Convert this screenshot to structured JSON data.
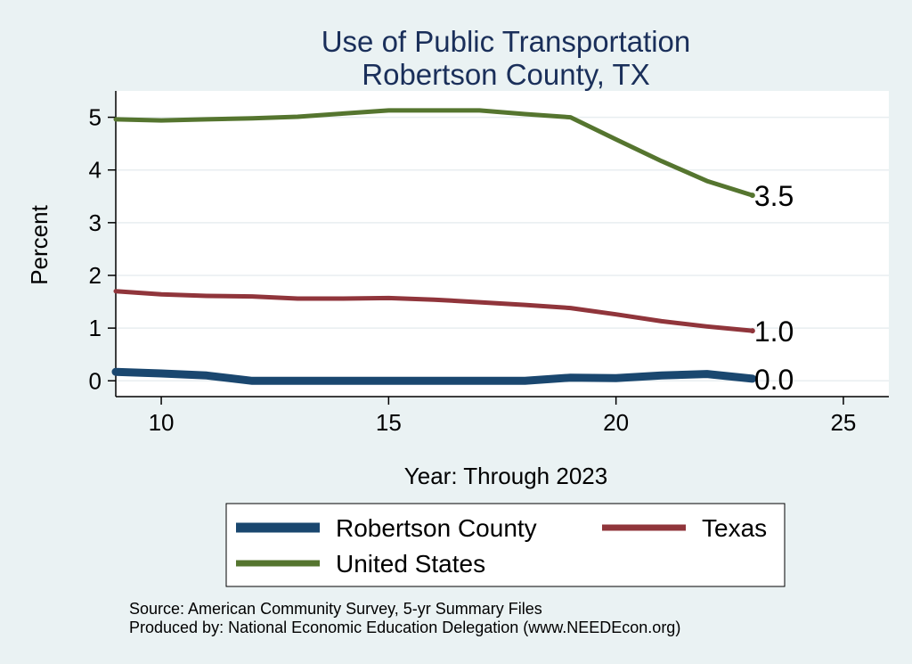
{
  "chart_data": {
    "type": "line",
    "title_lines": [
      "Use of Public Transportation",
      "Robertson County, TX"
    ],
    "xlabel": "Year: Through 2023",
    "ylabel": "Percent",
    "xlim": [
      9,
      26
    ],
    "ylim": [
      -0.3,
      5.5
    ],
    "x_ticks": [
      10,
      15,
      20,
      25
    ],
    "y_ticks": [
      0,
      1,
      2,
      3,
      4,
      5
    ],
    "grid": true,
    "legend_position": "bottom",
    "x": [
      9,
      10,
      11,
      12,
      13,
      14,
      15,
      16,
      17,
      18,
      19,
      20,
      21,
      22,
      23
    ],
    "series": [
      {
        "name": "Robertson County",
        "color": "#1a476f",
        "values": [
          0.17,
          0.14,
          0.1,
          0.0,
          0.0,
          0.0,
          0.0,
          0.0,
          0.0,
          0.0,
          0.06,
          0.05,
          0.1,
          0.13,
          0.04
        ],
        "end_label": "0.0"
      },
      {
        "name": "Texas",
        "color": "#90353b",
        "values": [
          1.7,
          1.64,
          1.61,
          1.6,
          1.56,
          1.56,
          1.57,
          1.54,
          1.49,
          1.44,
          1.38,
          1.26,
          1.13,
          1.03,
          0.95
        ],
        "end_label": "1.0"
      },
      {
        "name": "United States",
        "color": "#55752f",
        "values": [
          4.96,
          4.94,
          4.96,
          4.98,
          5.01,
          5.07,
          5.13,
          5.13,
          5.13,
          5.06,
          5.0,
          4.58,
          4.17,
          3.79,
          3.52
        ],
        "end_label": "3.5"
      }
    ]
  },
  "notes": {
    "source": "Source: American Community Survey, 5-yr Summary Files",
    "produced_by": "Produced by: National Economic Education Delegation (www.NEEDEcon.org)"
  }
}
